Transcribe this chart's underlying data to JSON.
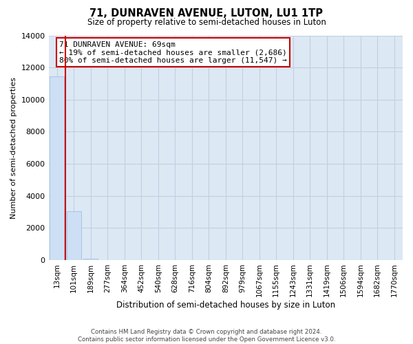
{
  "title_line1": "71, DUNRAVEN AVENUE, LUTON, LU1 1TP",
  "title_line2": "Size of property relative to semi-detached houses in Luton",
  "xlabel": "Distribution of semi-detached houses by size in Luton",
  "ylabel": "Number of semi-detached properties",
  "bar_labels": [
    "13sqm",
    "101sqm",
    "189sqm",
    "277sqm",
    "364sqm",
    "452sqm",
    "540sqm",
    "628sqm",
    "716sqm",
    "804sqm",
    "892sqm",
    "979sqm",
    "1067sqm",
    "1155sqm",
    "1243sqm",
    "1331sqm",
    "1419sqm",
    "1506sqm",
    "1594sqm",
    "1682sqm",
    "1770sqm"
  ],
  "bar_values": [
    11450,
    3020,
    90,
    0,
    0,
    0,
    0,
    0,
    0,
    0,
    0,
    0,
    0,
    0,
    0,
    0,
    0,
    0,
    0,
    0,
    0
  ],
  "bar_color": "#ccdff5",
  "bar_edge_color": "#aac4e0",
  "highlight_color": "#cc0000",
  "ylim": [
    0,
    14000
  ],
  "yticks": [
    0,
    2000,
    4000,
    6000,
    8000,
    10000,
    12000,
    14000
  ],
  "annotation_box_text_line1": "71 DUNRAVEN AVENUE: 69sqm",
  "annotation_box_text_line2": "← 19% of semi-detached houses are smaller (2,686)",
  "annotation_box_text_line3": "80% of semi-detached houses are larger (11,547) →",
  "annotation_box_edge_color": "#cc0000",
  "annotation_box_bg_color": "#ffffff",
  "grid_color": "#c0d0e0",
  "plot_bg_color": "#dde8f5",
  "fig_bg_color": "#ffffff",
  "footer_line1": "Contains HM Land Registry data © Crown copyright and database right 2024.",
  "footer_line2": "Contains public sector information licensed under the Open Government Licence v3.0."
}
